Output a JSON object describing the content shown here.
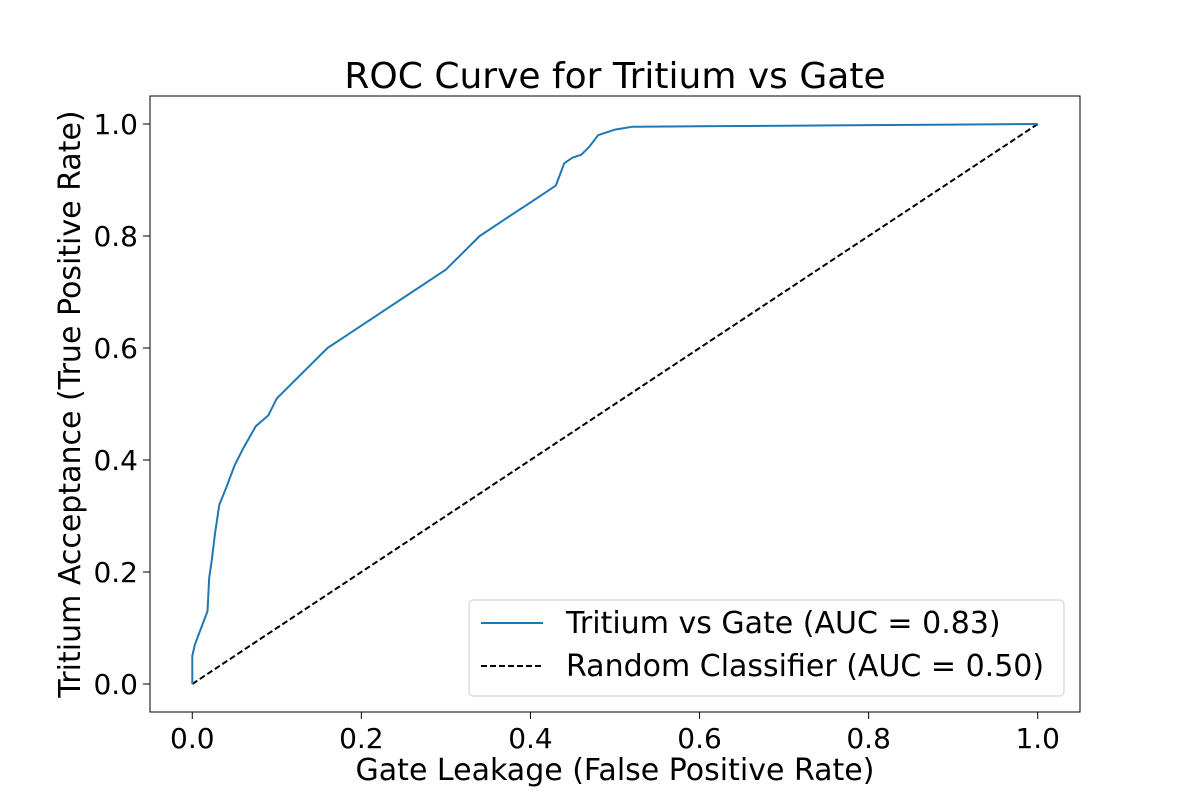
{
  "chart_data": {
    "type": "line",
    "title": "ROC Curve for Tritium vs Gate",
    "xlabel": "Gate Leakage (False Positive Rate)",
    "ylabel": "Tritium Acceptance (True Positive Rate)",
    "xlim": [
      -0.05,
      1.05
    ],
    "ylim": [
      -0.05,
      1.05
    ],
    "xticks": [
      0.0,
      0.2,
      0.4,
      0.6,
      0.8,
      1.0
    ],
    "yticks": [
      0.0,
      0.2,
      0.4,
      0.6,
      0.8,
      1.0
    ],
    "xtick_labels": [
      "0.0",
      "0.2",
      "0.4",
      "0.6",
      "0.8",
      "1.0"
    ],
    "ytick_labels": [
      "0.0",
      "0.2",
      "0.4",
      "0.6",
      "0.8",
      "1.0"
    ],
    "grid": false,
    "legend_position": "lower-right",
    "series": [
      {
        "name": "Tritium vs Gate (AUC = 0.83)",
        "color": "#1f77b4",
        "style": "solid",
        "x": [
          0.0,
          0.0,
          0.003,
          0.008,
          0.013,
          0.018,
          0.02,
          0.023,
          0.027,
          0.032,
          0.04,
          0.05,
          0.06,
          0.075,
          0.09,
          0.1,
          0.12,
          0.14,
          0.16,
          0.18,
          0.2,
          0.22,
          0.24,
          0.26,
          0.28,
          0.3,
          0.32,
          0.34,
          0.36,
          0.38,
          0.4,
          0.42,
          0.43,
          0.44,
          0.45,
          0.46,
          0.47,
          0.48,
          0.5,
          0.52,
          0.6,
          0.7,
          0.8,
          0.9,
          1.0
        ],
        "y": [
          0.0,
          0.05,
          0.07,
          0.09,
          0.11,
          0.13,
          0.19,
          0.22,
          0.27,
          0.32,
          0.35,
          0.39,
          0.42,
          0.46,
          0.48,
          0.51,
          0.54,
          0.57,
          0.6,
          0.62,
          0.64,
          0.66,
          0.68,
          0.7,
          0.72,
          0.74,
          0.77,
          0.8,
          0.82,
          0.84,
          0.86,
          0.88,
          0.89,
          0.93,
          0.94,
          0.945,
          0.96,
          0.98,
          0.99,
          0.995,
          0.996,
          0.997,
          0.998,
          0.999,
          1.0
        ]
      },
      {
        "name": "Random Classifier (AUC = 0.50)",
        "color": "#000000",
        "style": "dashed",
        "x": [
          0.0,
          1.0
        ],
        "y": [
          0.0,
          1.0
        ]
      }
    ]
  }
}
